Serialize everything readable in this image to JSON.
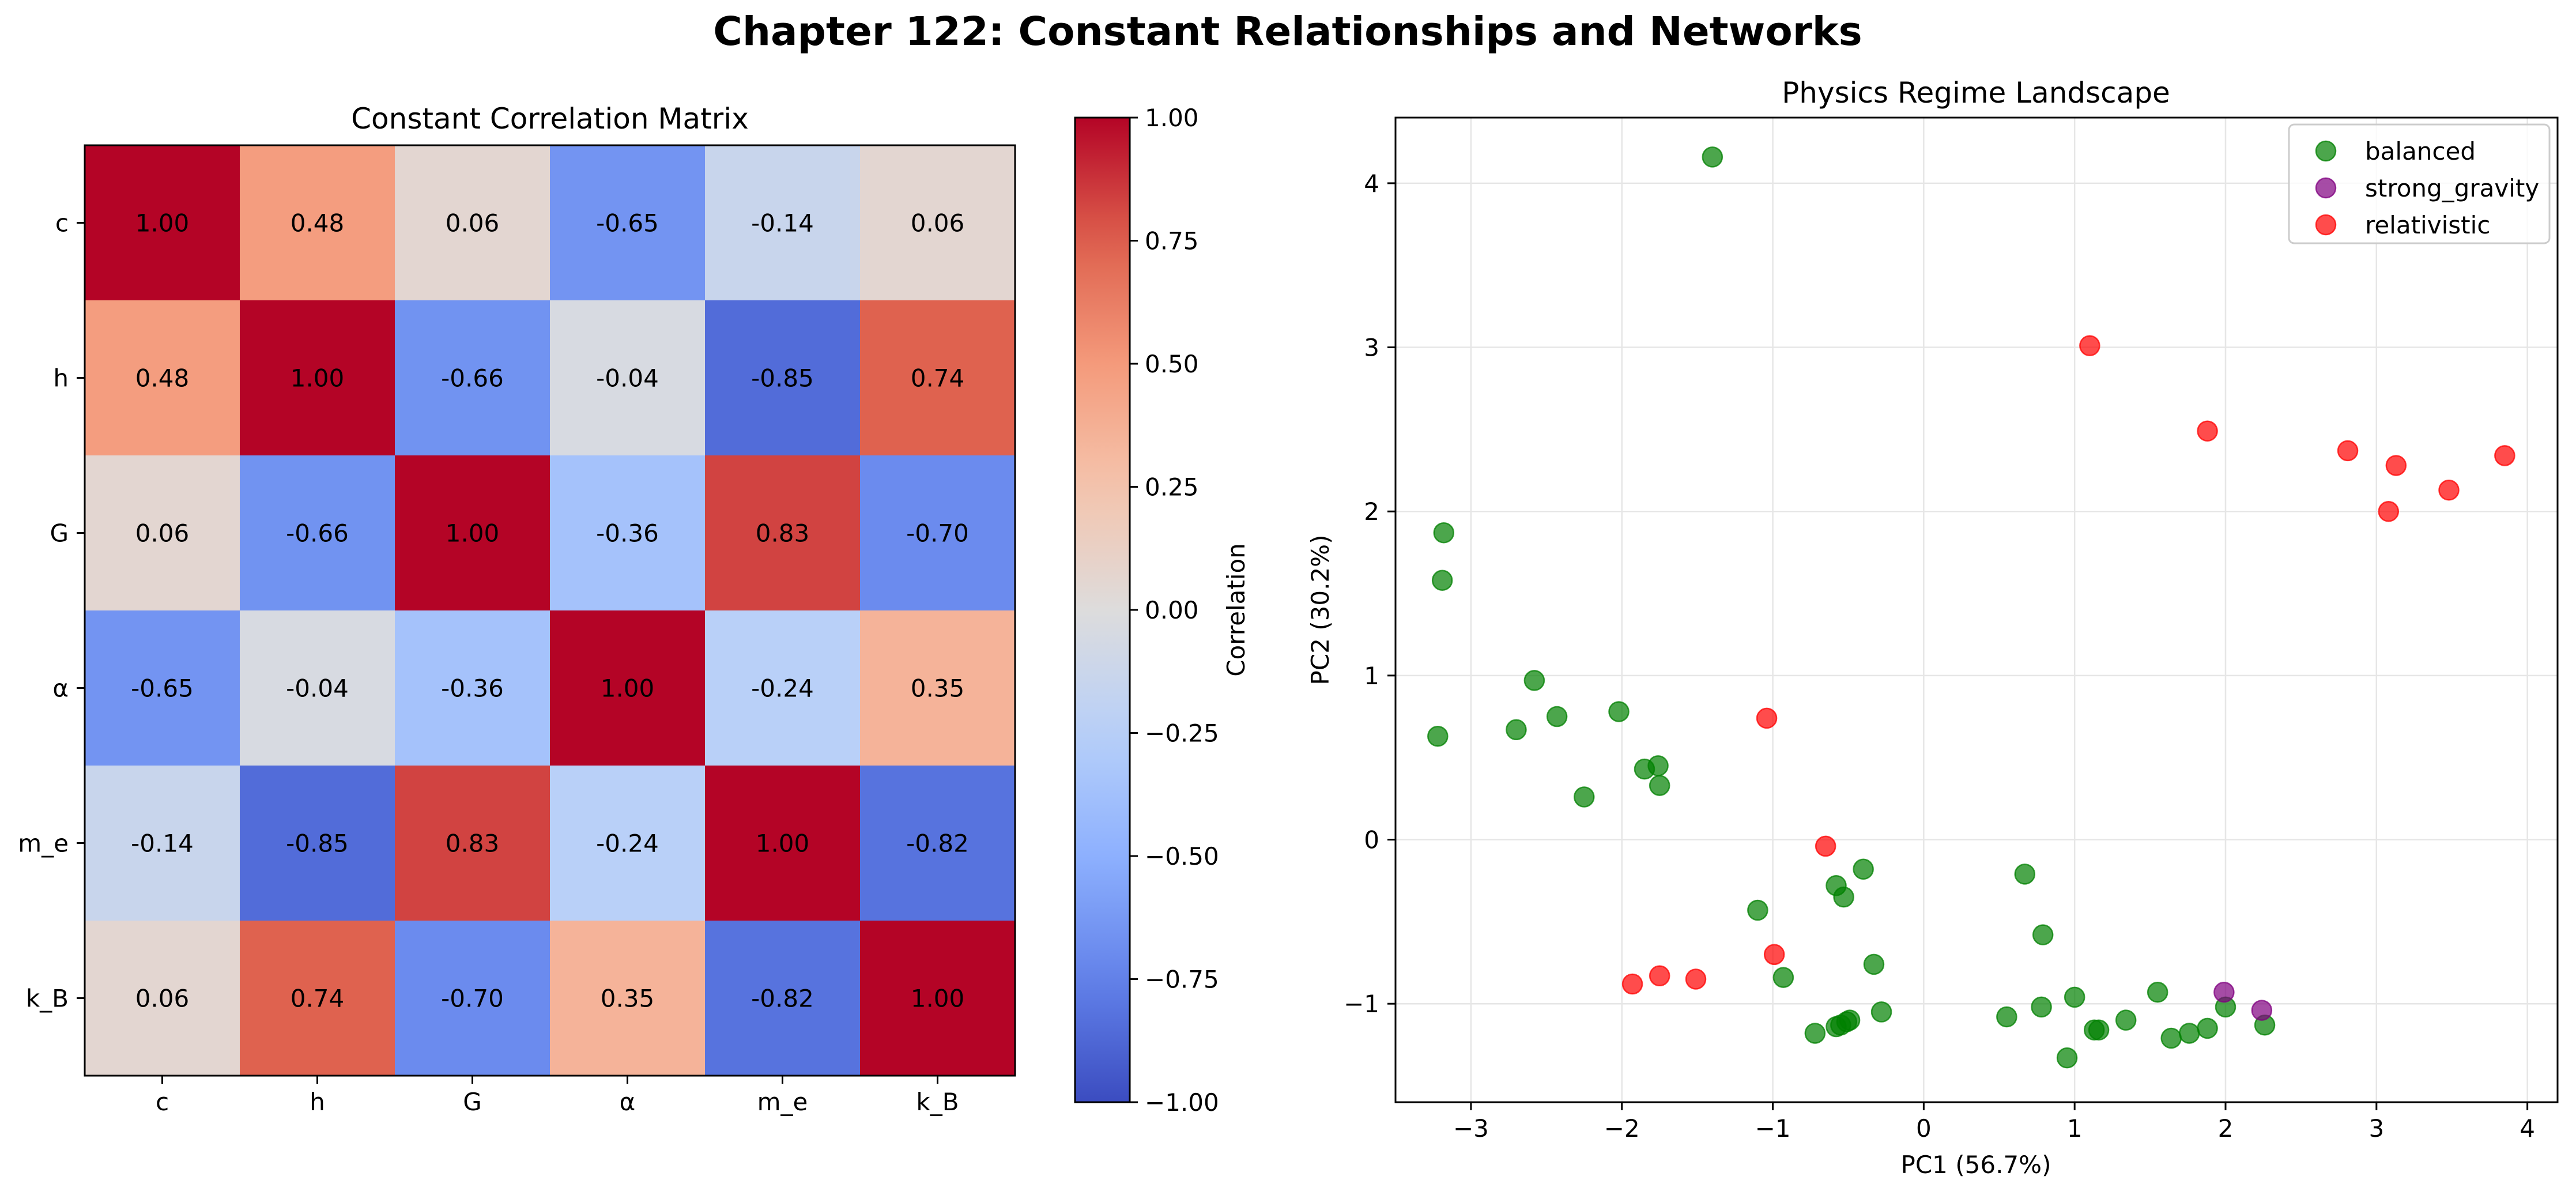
{
  "figure": {
    "title": "Chapter 122: Constant Relationships and Networks"
  },
  "colors": {
    "balanced": "#008000",
    "strong_gravity": "#800080",
    "relativistic": "#ff0000",
    "grid": "#e6e6e6",
    "axis": "#000000"
  },
  "chart_data": [
    {
      "type": "heatmap",
      "title": "Constant Correlation Matrix",
      "x_labels": [
        "c",
        "h",
        "G",
        "α",
        "m_e",
        "k_B"
      ],
      "y_labels": [
        "c",
        "h",
        "G",
        "α",
        "m_e",
        "k_B"
      ],
      "values": [
        [
          1.0,
          0.48,
          0.06,
          -0.65,
          -0.14,
          0.06
        ],
        [
          0.48,
          1.0,
          -0.66,
          -0.04,
          -0.85,
          0.74
        ],
        [
          0.06,
          -0.66,
          1.0,
          -0.36,
          0.83,
          -0.7
        ],
        [
          -0.65,
          -0.04,
          -0.36,
          1.0,
          -0.24,
          0.35
        ],
        [
          -0.14,
          -0.85,
          0.83,
          -0.24,
          1.0,
          -0.82
        ],
        [
          0.06,
          0.74,
          -0.7,
          0.35,
          -0.82,
          1.0
        ]
      ],
      "vmin": -1.0,
      "vmax": 1.0,
      "colormap": "coolwarm",
      "colorbar_label": "Correlation",
      "colorbar_ticks": [
        "-1.00",
        "-0.75",
        "-0.50",
        "-0.25",
        "0.00",
        "0.25",
        "0.50",
        "0.75",
        "1.00"
      ]
    },
    {
      "type": "scatter",
      "title": "Physics Regime Landscape",
      "xlabel": "PC1 (56.7%)",
      "ylabel": "PC2 (30.2%)",
      "xlim": [
        -3.5,
        4.2
      ],
      "ylim": [
        -1.6,
        4.4
      ],
      "xticks": [
        -3,
        -2,
        -1,
        0,
        1,
        2,
        3,
        4
      ],
      "yticks": [
        -1,
        0,
        1,
        2,
        3,
        4
      ],
      "xtick_labels": [
        "−3",
        "−2",
        "−1",
        "0",
        "1",
        "2",
        "3",
        "4"
      ],
      "ytick_labels": [
        "−1",
        "0",
        "1",
        "2",
        "3",
        "4"
      ],
      "grid": true,
      "legend_position": "top-right",
      "series": [
        {
          "name": "balanced",
          "color_key": "balanced",
          "points": [
            [
              -1.4,
              4.16
            ],
            [
              -3.18,
              1.87
            ],
            [
              -3.19,
              1.58
            ],
            [
              -3.22,
              0.63
            ],
            [
              -2.58,
              0.97
            ],
            [
              -2.7,
              0.67
            ],
            [
              -2.43,
              0.75
            ],
            [
              -2.02,
              0.78
            ],
            [
              -1.85,
              0.43
            ],
            [
              -1.76,
              0.45
            ],
            [
              -1.75,
              0.33
            ],
            [
              -2.25,
              0.26
            ],
            [
              -1.1,
              -0.43
            ],
            [
              -0.93,
              -0.84
            ],
            [
              -0.58,
              -0.28
            ],
            [
              -0.53,
              -0.35
            ],
            [
              -0.4,
              -0.18
            ],
            [
              -0.33,
              -0.76
            ],
            [
              -0.28,
              -1.05
            ],
            [
              -0.49,
              -1.1
            ],
            [
              -0.51,
              -1.11
            ],
            [
              -0.55,
              -1.13
            ],
            [
              -0.58,
              -1.14
            ],
            [
              -0.72,
              -1.18
            ],
            [
              0.55,
              -1.08
            ],
            [
              0.67,
              -0.21
            ],
            [
              0.79,
              -0.58
            ],
            [
              0.78,
              -1.02
            ],
            [
              1.0,
              -0.96
            ],
            [
              1.13,
              -1.16
            ],
            [
              1.16,
              -1.16
            ],
            [
              1.34,
              -1.1
            ],
            [
              1.55,
              -0.93
            ],
            [
              1.64,
              -1.21
            ],
            [
              1.76,
              -1.18
            ],
            [
              1.88,
              -1.15
            ],
            [
              2.0,
              -1.02
            ],
            [
              0.95,
              -1.33
            ],
            [
              2.26,
              -1.13
            ]
          ]
        },
        {
          "name": "strong_gravity",
          "color_key": "strong_gravity",
          "points": [
            [
              1.99,
              -0.93
            ],
            [
              2.24,
              -1.04
            ]
          ]
        },
        {
          "name": "relativistic",
          "color_key": "relativistic",
          "points": [
            [
              1.1,
              3.01
            ],
            [
              1.88,
              2.49
            ],
            [
              2.81,
              2.37
            ],
            [
              3.13,
              2.28
            ],
            [
              3.48,
              2.13
            ],
            [
              3.08,
              2.0
            ],
            [
              3.85,
              2.34
            ],
            [
              -1.04,
              0.74
            ],
            [
              -0.65,
              -0.04
            ],
            [
              -0.99,
              -0.7
            ],
            [
              -1.93,
              -0.88
            ],
            [
              -1.75,
              -0.83
            ],
            [
              -1.51,
              -0.85
            ]
          ]
        }
      ]
    }
  ]
}
